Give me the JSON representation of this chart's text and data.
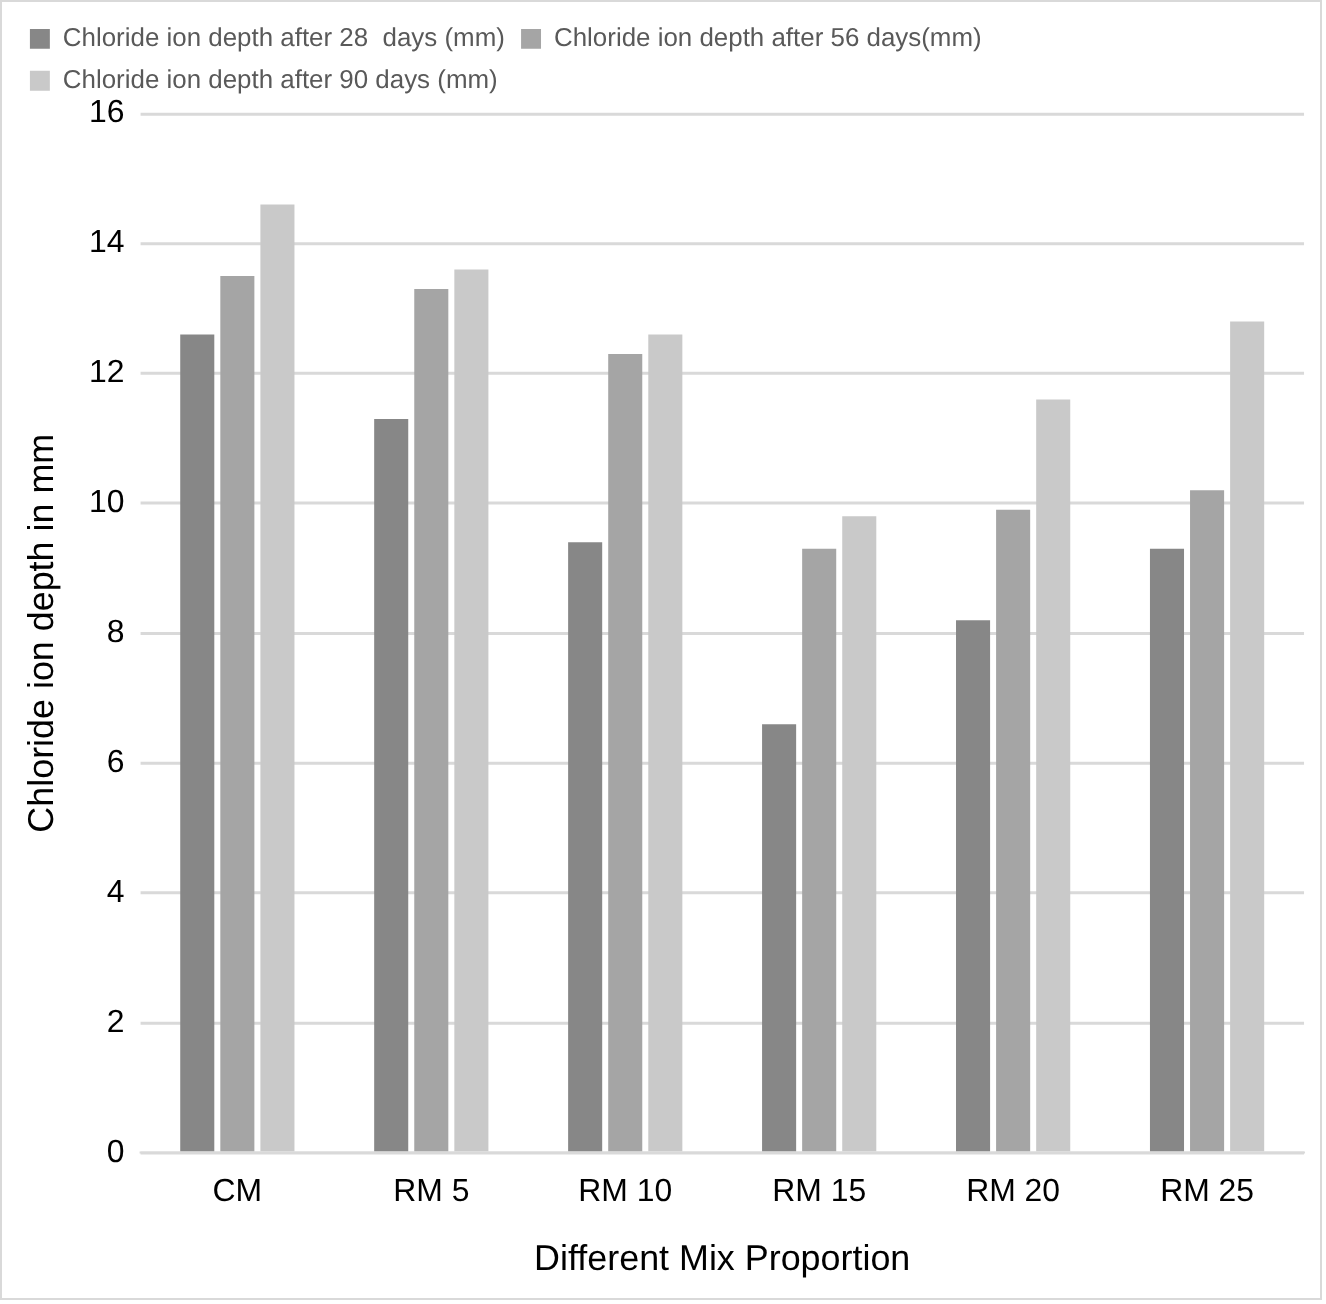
{
  "chart_data": {
    "type": "bar",
    "categories": [
      "CM",
      "RM 5",
      "RM 10",
      "RM 15",
      "RM 20",
      "RM 25"
    ],
    "series": [
      {
        "name": "Chloride ion depth after 28  days (mm)",
        "color": "#878787",
        "values": [
          12.6,
          11.3,
          9.4,
          6.6,
          8.2,
          9.3
        ]
      },
      {
        "name": "Chloride ion depth after 56 days(mm)",
        "color": "#a5a5a5",
        "values": [
          13.5,
          13.3,
          12.3,
          9.3,
          9.9,
          10.2
        ]
      },
      {
        "name": "Chloride ion depth after 90 days (mm)",
        "color": "#c9c9c9",
        "values": [
          14.6,
          13.6,
          12.6,
          9.8,
          11.6,
          12.8
        ]
      }
    ],
    "xlabel": "Different Mix Proportion",
    "ylabel": "Chloride ion depth in mm",
    "ylim": [
      0,
      16
    ],
    "yticks": [
      0,
      2,
      4,
      6,
      8,
      10,
      12,
      14,
      16
    ],
    "grid": "y",
    "legend": "top left"
  }
}
